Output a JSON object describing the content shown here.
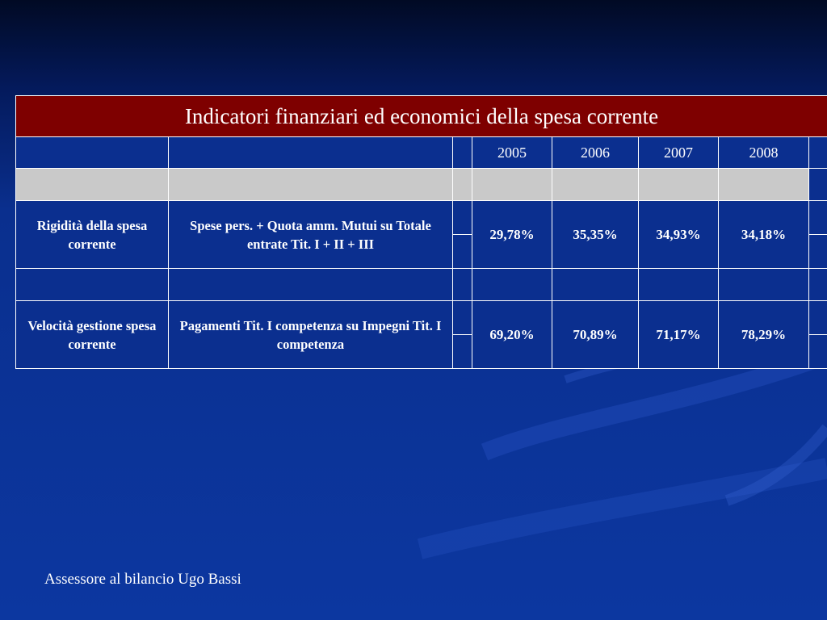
{
  "table": {
    "title": "Indicatori finanziari ed economici della spesa corrente",
    "years": [
      "2005",
      "2006",
      "2007",
      "2008"
    ],
    "rows": [
      {
        "label": "Rigidità della spesa corrente",
        "description": "Spese pers. + Quota amm. Mutui su Totale entrate Tit. I + II + III",
        "values": [
          "29,78%",
          "35,35%",
          "34,93%",
          "34,18%"
        ]
      },
      {
        "label": "Velocità gestione spesa corrente",
        "description": "Pagamenti Tit. I competenza su Impegni Tit. I competenza",
        "values": [
          "69,20%",
          "70,89%",
          "71,17%",
          "78,29%"
        ]
      }
    ]
  },
  "footer": "Assessore al bilancio Ugo Bassi",
  "colors": {
    "title_background": "#7e0000",
    "slide_background": "#0c37a0",
    "gray_row": "#c9c9c9"
  }
}
